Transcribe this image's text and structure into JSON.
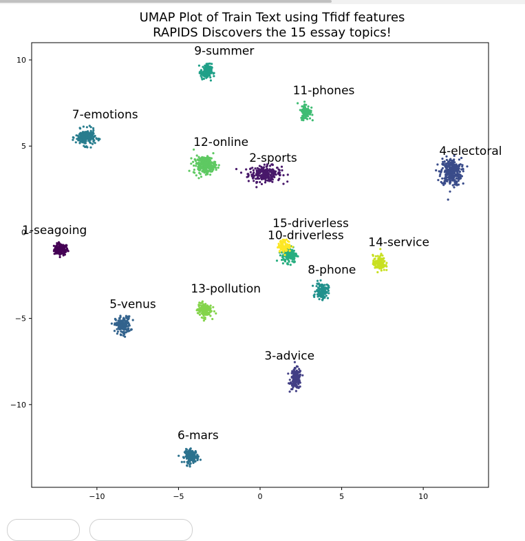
{
  "chart_data": {
    "type": "scatter",
    "title": "UMAP Plot of Train Text using Tfidf features",
    "subtitle": "RAPIDS Discovers the 15 essay topics!",
    "xlabel": "",
    "ylabel": "",
    "xlim": [
      -14,
      14
    ],
    "ylim": [
      -14.8,
      11
    ],
    "xticks": [
      -10,
      -5,
      0,
      5,
      10
    ],
    "yticks": [
      10,
      5,
      0,
      -5,
      -10
    ],
    "xtick_labels": [
      "−10",
      "−5",
      "0",
      "5",
      "10"
    ],
    "ytick_labels": [
      "10",
      "5",
      "0",
      "−5",
      "−10"
    ],
    "grid": false,
    "clusters": [
      {
        "name": "1-seagoing",
        "topic": 1,
        "color": "#440154",
        "center": [
          -12.2,
          -1.0
        ],
        "spread": [
          0.5,
          0.4
        ],
        "n": 120,
        "label_at": [
          -12.6,
          -0.1
        ]
      },
      {
        "name": "2-sports",
        "topic": 2,
        "color": "#48186a",
        "center": [
          0.3,
          3.4
        ],
        "spread": [
          1.2,
          0.55
        ],
        "n": 240,
        "label_at": [
          0.8,
          4.1
        ]
      },
      {
        "name": "3-advice",
        "topic": 3,
        "color": "#423f85",
        "center": [
          2.2,
          -8.5
        ],
        "spread": [
          0.4,
          0.7
        ],
        "n": 160,
        "label_at": [
          1.8,
          -7.4
        ]
      },
      {
        "name": "4-electoral",
        "topic": 4,
        "color": "#3a4c8a",
        "center": [
          11.7,
          3.5
        ],
        "spread": [
          0.75,
          0.95
        ],
        "n": 300,
        "label_at": [
          12.9,
          4.5
        ]
      },
      {
        "name": "5-venus",
        "topic": 5,
        "color": "#33638d",
        "center": [
          -8.4,
          -5.4
        ],
        "spread": [
          0.55,
          0.6
        ],
        "n": 180,
        "label_at": [
          -7.8,
          -4.4
        ]
      },
      {
        "name": "6-mars",
        "topic": 6,
        "color": "#2c728e",
        "center": [
          -4.2,
          -13.0
        ],
        "spread": [
          0.5,
          0.45
        ],
        "n": 150,
        "label_at": [
          -3.8,
          -12.0
        ]
      },
      {
        "name": "7-emotions",
        "topic": 7,
        "color": "#287d8e",
        "center": [
          -10.7,
          5.5
        ],
        "spread": [
          0.7,
          0.55
        ],
        "n": 200,
        "label_at": [
          -9.5,
          6.6
        ]
      },
      {
        "name": "8-phone",
        "topic": 8,
        "color": "#21918c",
        "center": [
          3.8,
          -3.4
        ],
        "spread": [
          0.45,
          0.55
        ],
        "n": 130,
        "label_at": [
          4.4,
          -2.4
        ]
      },
      {
        "name": "9-summer",
        "topic": 9,
        "color": "#1fa088",
        "center": [
          -3.3,
          9.3
        ],
        "spread": [
          0.4,
          0.55
        ],
        "n": 130,
        "label_at": [
          -2.2,
          10.3
        ]
      },
      {
        "name": "10-driverless",
        "topic": 10,
        "color": "#28ae80",
        "center": [
          1.8,
          -1.3
        ],
        "spread": [
          0.55,
          0.55
        ],
        "n": 160,
        "label_at": [
          2.8,
          -0.4
        ]
      },
      {
        "name": "11-phones",
        "topic": 11,
        "color": "#3fbc73",
        "center": [
          2.8,
          7.0
        ],
        "spread": [
          0.35,
          0.55
        ],
        "n": 110,
        "label_at": [
          3.9,
          8.0
        ]
      },
      {
        "name": "12-online",
        "topic": 12,
        "color": "#5ec962",
        "center": [
          -3.4,
          3.9
        ],
        "spread": [
          0.8,
          0.6
        ],
        "n": 240,
        "label_at": [
          -2.4,
          5.0
        ]
      },
      {
        "name": "13-pollution",
        "topic": 13,
        "color": "#84d44b",
        "center": [
          -3.4,
          -4.5
        ],
        "spread": [
          0.5,
          0.5
        ],
        "n": 150,
        "label_at": [
          -2.1,
          -3.5
        ]
      },
      {
        "name": "14-service",
        "topic": 14,
        "color": "#c8e020",
        "center": [
          7.3,
          -1.8
        ],
        "spread": [
          0.45,
          0.55
        ],
        "n": 120,
        "label_at": [
          8.5,
          -0.8
        ]
      },
      {
        "name": "15-driverless",
        "topic": 15,
        "color": "#fde725",
        "center": [
          1.5,
          -0.8
        ],
        "spread": [
          0.45,
          0.4
        ],
        "n": 100,
        "label_at": [
          3.1,
          0.3
        ]
      }
    ]
  }
}
